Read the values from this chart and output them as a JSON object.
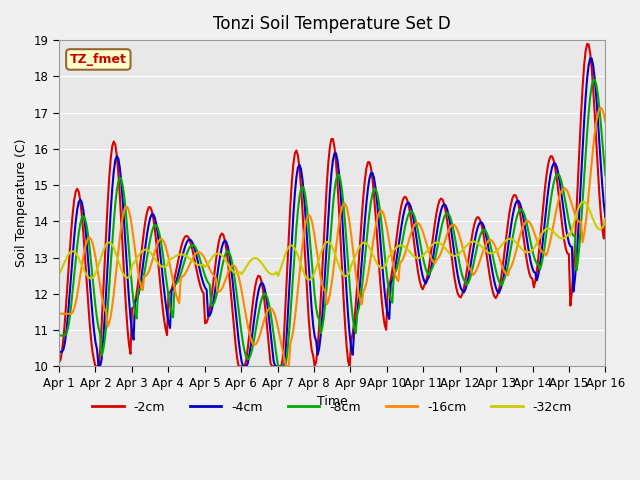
{
  "title": "Tonzi Soil Temperature Set D",
  "xlabel": "Time",
  "ylabel": "Soil Temperature (C)",
  "ylim": [
    10.0,
    19.0
  ],
  "yticks": [
    10.0,
    11.0,
    12.0,
    13.0,
    14.0,
    15.0,
    16.0,
    17.0,
    18.0,
    19.0
  ],
  "xtick_labels": [
    "Apr 1",
    "Apr 2",
    "Apr 3",
    "Apr 4",
    "Apr 5",
    "Apr 6",
    "Apr 7",
    "Apr 8",
    "Apr 9",
    "Apr 10",
    "Apr 11",
    "Apr 12",
    "Apr 13",
    "Apr 14",
    "Apr 15",
    "Apr 16"
  ],
  "legend_label": "TZ_fmet",
  "series_labels": [
    "-2cm",
    "-4cm",
    "-8cm",
    "-16cm",
    "-32cm"
  ],
  "series_colors": [
    "#dd0000",
    "#0000cc",
    "#00aa00",
    "#ff8800",
    "#cccc00"
  ],
  "series_linewidths": [
    1.5,
    1.5,
    1.5,
    1.5,
    1.5
  ],
  "background_color": "#e8e8e8",
  "plot_bg_color": "#e8e8e8",
  "n_points": 360,
  "days": 15
}
